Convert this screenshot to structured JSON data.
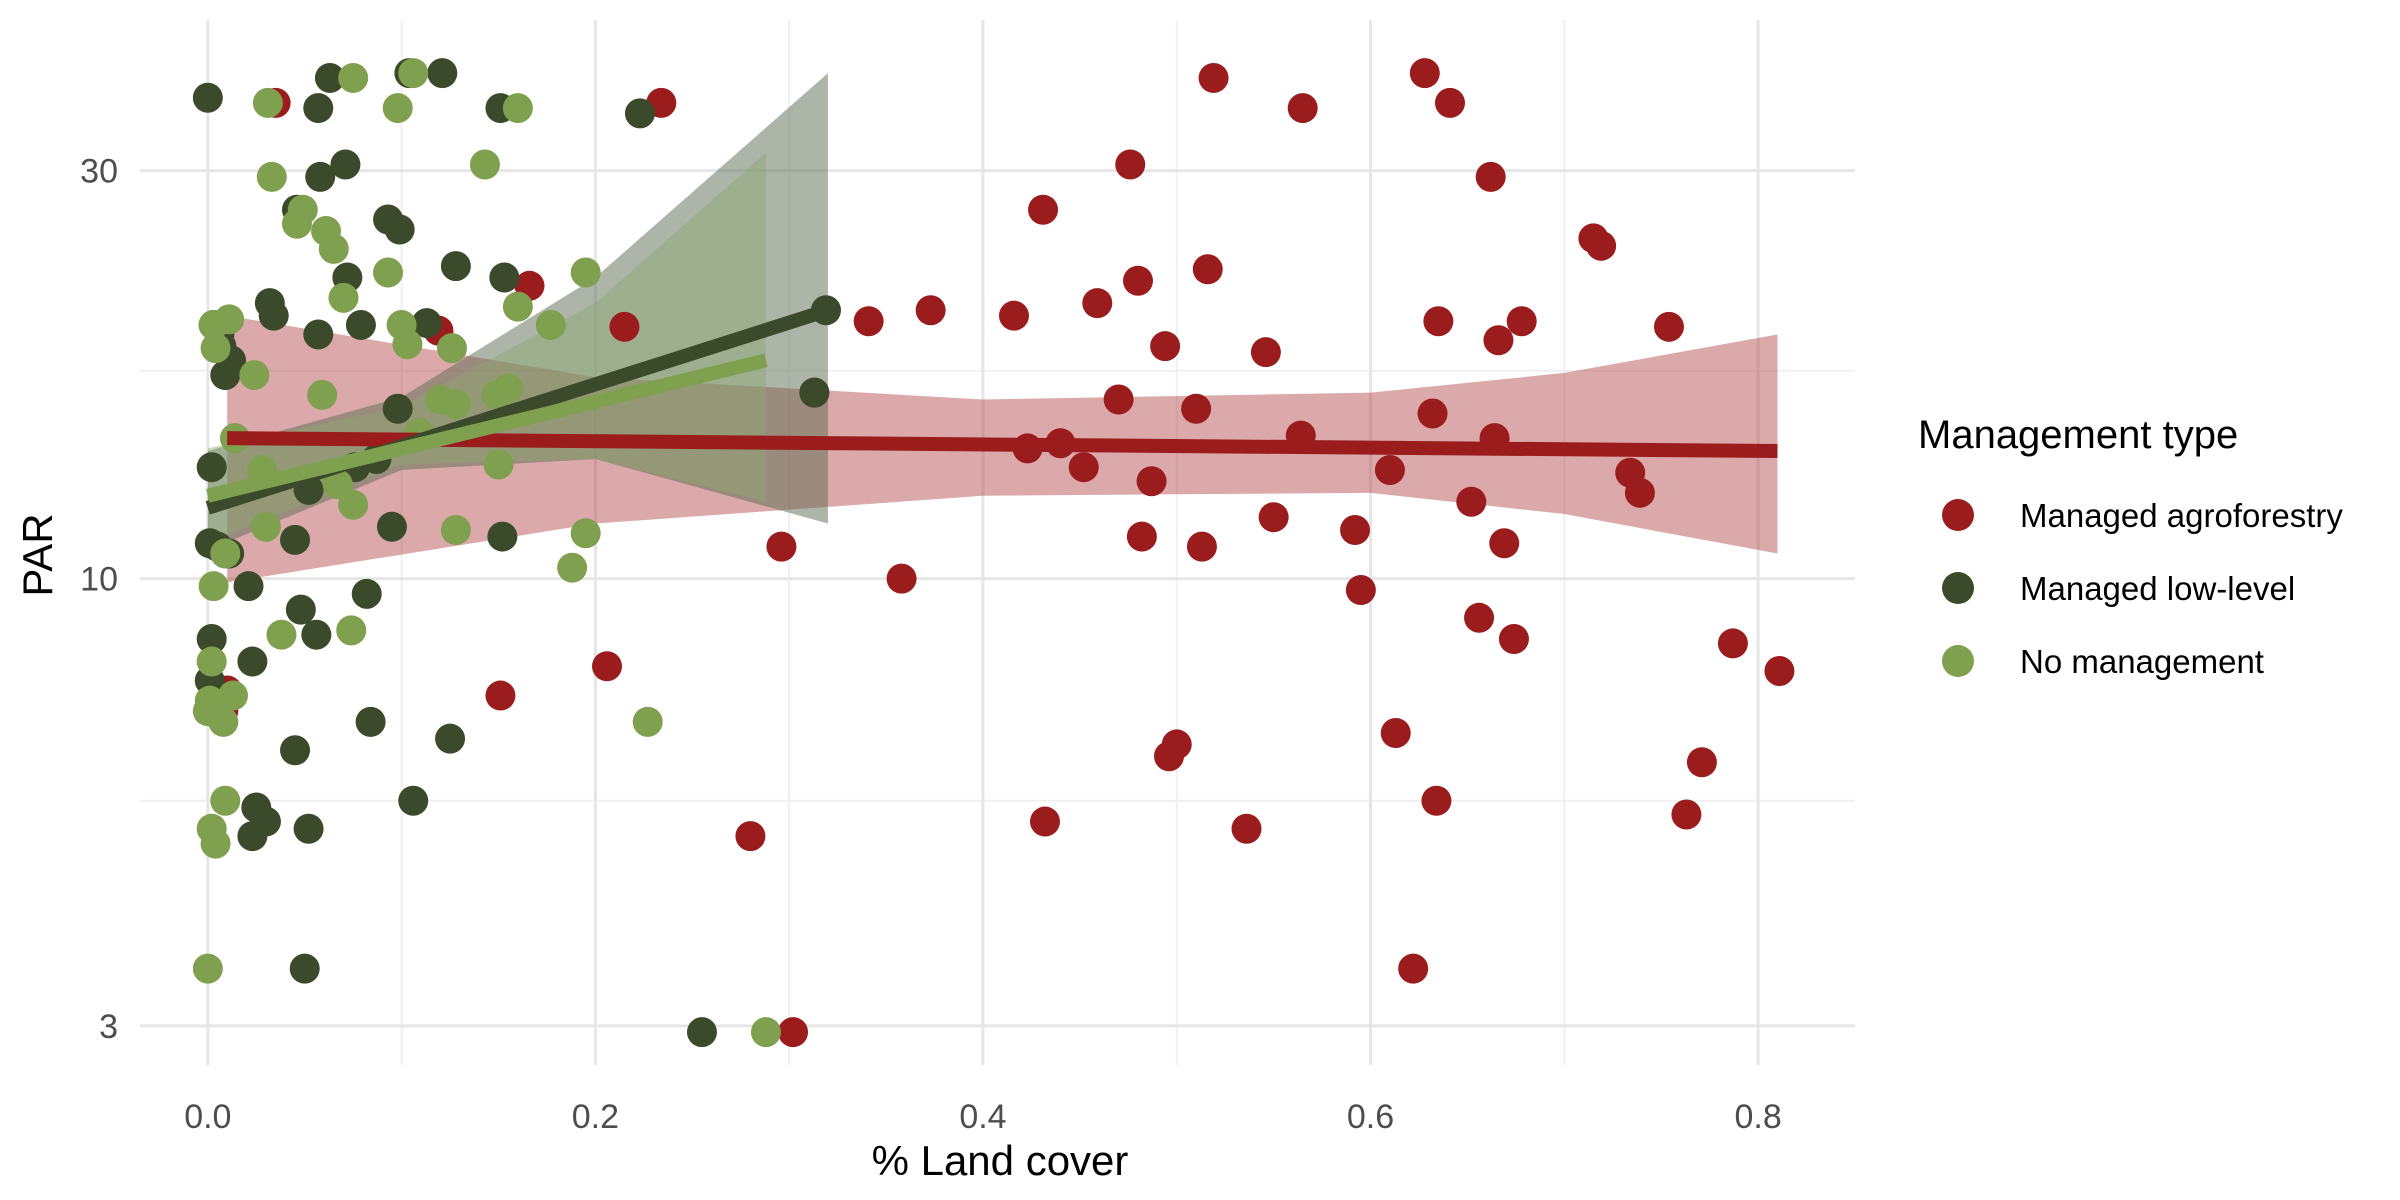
{
  "chart_data": {
    "type": "scatter",
    "xlabel": "% Land cover",
    "ylabel": "PAR",
    "y_scale": "log",
    "xlim": [
      -0.035,
      0.85
    ],
    "ylim": [
      2.7,
      45
    ],
    "x_ticks": [
      0.0,
      0.2,
      0.4,
      0.6,
      0.8
    ],
    "x_tick_labels": [
      "0.0",
      "0.2",
      "0.4",
      "0.6",
      "0.8"
    ],
    "y_ticks": [
      3,
      10,
      30
    ],
    "y_tick_labels": [
      "3",
      "10",
      "30"
    ],
    "grid": true,
    "legend": {
      "title": "Management type",
      "position": "right"
    },
    "series": [
      {
        "name": "Managed agroforestry",
        "color": "#9b1c1c",
        "x": [
          0.035,
          0.234,
          0.166,
          0.119,
          0.215,
          0.313,
          0.01,
          0.008,
          0.206,
          0.151,
          0.296,
          0.302,
          0.28,
          0.341,
          0.373,
          0.358,
          0.416,
          0.423,
          0.431,
          0.432,
          0.44,
          0.452,
          0.459,
          0.47,
          0.476,
          0.48,
          0.482,
          0.487,
          0.494,
          0.496,
          0.5,
          0.51,
          0.513,
          0.516,
          0.519,
          0.536,
          0.546,
          0.55,
          0.564,
          0.565,
          0.592,
          0.595,
          0.61,
          0.613,
          0.622,
          0.628,
          0.632,
          0.634,
          0.635,
          0.641,
          0.652,
          0.656,
          0.662,
          0.664,
          0.666,
          0.669,
          0.674,
          0.678,
          0.715,
          0.719,
          0.734,
          0.739,
          0.754,
          0.763,
          0.771,
          0.787,
          0.811
        ],
        "y": [
          36,
          36,
          22,
          19.5,
          19.7,
          16.5,
          7.4,
          7,
          7.9,
          7.3,
          10.9,
          2.95,
          5,
          20,
          20.6,
          10,
          20.3,
          14.2,
          27,
          5.2,
          14.4,
          13.5,
          21,
          16.2,
          30.5,
          22.3,
          11.2,
          13,
          18.7,
          6.2,
          6.4,
          15.8,
          10.9,
          23,
          38.5,
          5.1,
          18.4,
          11.8,
          14.7,
          35.5,
          11.4,
          9.7,
          13.4,
          6.6,
          3.5,
          39,
          15.6,
          5.5,
          20,
          36,
          12.3,
          9,
          29.5,
          14.6,
          19,
          11,
          8.5,
          20,
          25,
          24.5,
          13.3,
          12.6,
          19.7,
          5.3,
          6.1,
          8.4,
          7.8
        ]
      },
      {
        "name": "Managed low-level",
        "color": "#3a4a2a",
        "x": [
          0.0,
          0.063,
          0.104,
          0.121,
          0.151,
          0.223,
          0.057,
          0.071,
          0.046,
          0.093,
          0.099,
          0.128,
          0.153,
          0.072,
          0.032,
          0.003,
          0.034,
          0.079,
          0.113,
          0.007,
          0.009,
          0.057,
          0.087,
          0.098,
          0.076,
          0.002,
          0.001,
          0.005,
          0.095,
          0.152,
          0.048,
          0.021,
          0.011,
          0.052,
          0.082,
          0.002,
          0.056,
          0.023,
          0.001,
          0.001,
          0.084,
          0.125,
          0.045,
          0.106,
          0.025,
          0.03,
          0.023,
          0.052,
          0.05,
          0.255,
          0.319,
          0.313,
          0.058,
          0.045,
          0.012,
          0.006
        ],
        "y": [
          36.5,
          38.5,
          39,
          39,
          35.5,
          35,
          35.5,
          30.5,
          27,
          26.3,
          25.6,
          23.2,
          22.5,
          22.5,
          21,
          19.8,
          20.3,
          19.8,
          19.9,
          18.7,
          17.3,
          19.3,
          13.8,
          15.8,
          13.5,
          13.5,
          11,
          10.9,
          11.5,
          11.2,
          9.2,
          9.8,
          10.7,
          12.7,
          9.6,
          8.5,
          8.6,
          8.0,
          7.6,
          7.0,
          6.8,
          6.5,
          6.3,
          5.5,
          5.4,
          5.2,
          5.0,
          5.1,
          3.5,
          2.95,
          20.6,
          16.5,
          29.5,
          11.1,
          18.0,
          19.3
        ]
      },
      {
        "name": "No management",
        "color": "#7fa04e",
        "x": [
          0.075,
          0.106,
          0.031,
          0.098,
          0.16,
          0.143,
          0.033,
          0.049,
          0.046,
          0.061,
          0.065,
          0.07,
          0.093,
          0.195,
          0.003,
          0.011,
          0.004,
          0.024,
          0.1,
          0.103,
          0.126,
          0.16,
          0.177,
          0.149,
          0.155,
          0.128,
          0.12,
          0.109,
          0.059,
          0.028,
          0.067,
          0.15,
          0.075,
          0.014,
          0.03,
          0.128,
          0.195,
          0.188,
          0.003,
          0.009,
          0.038,
          0.074,
          0.002,
          0.001,
          0.013,
          0.0,
          0.008,
          0.009,
          0.002,
          0.004,
          0.227,
          0.288,
          0.0
        ],
        "y": [
          38.5,
          39,
          36,
          35.5,
          35.5,
          30.5,
          29.5,
          27,
          26,
          25.5,
          24.3,
          21.3,
          22.8,
          22.8,
          19.8,
          20.1,
          18.6,
          17.3,
          19.8,
          18.8,
          18.6,
          20.8,
          19.8,
          16.4,
          16.7,
          16.0,
          16.2,
          14.8,
          16.4,
          13.4,
          12.9,
          13.6,
          12.2,
          14.6,
          11.5,
          11.4,
          11.3,
          10.3,
          9.8,
          10.7,
          8.6,
          8.7,
          8.0,
          7.2,
          7.3,
          7.0,
          6.8,
          5.5,
          5.1,
          4.9,
          6.8,
          2.95,
          3.5
        ]
      }
    ],
    "trend_lines": [
      {
        "series": "Managed agroforestry",
        "x_start": 0.01,
        "x_end": 0.81,
        "y_start": 14.6,
        "y_end": 14.1,
        "band_lower": [
          [
            0.01,
            9.9
          ],
          [
            0.2,
            11.6
          ],
          [
            0.4,
            12.5
          ],
          [
            0.6,
            12.6
          ],
          [
            0.7,
            11.9
          ],
          [
            0.81,
            10.7
          ]
        ],
        "band_upper": [
          [
            0.01,
            20.3
          ],
          [
            0.2,
            17.2
          ],
          [
            0.4,
            16.2
          ],
          [
            0.6,
            16.5
          ],
          [
            0.7,
            17.4
          ],
          [
            0.81,
            19.3
          ]
        ]
      },
      {
        "series": "Managed low-level",
        "x_start": 0.0,
        "x_end": 0.32,
        "y_start": 12.1,
        "y_end": 20.6,
        "band_lower": [
          [
            0.0,
            10.8
          ],
          [
            0.1,
            13.4
          ],
          [
            0.2,
            13.8
          ],
          [
            0.32,
            11.6
          ]
        ],
        "band_upper": [
          [
            0.0,
            14.1
          ],
          [
            0.1,
            16.3
          ],
          [
            0.2,
            22.5
          ],
          [
            0.32,
            39.0
          ]
        ]
      },
      {
        "series": "No management",
        "x_start": 0.0,
        "x_end": 0.288,
        "y_start": 12.5,
        "y_end": 18.0,
        "band_lower": [
          [
            0.0,
            11.0
          ],
          [
            0.1,
            13.6
          ],
          [
            0.2,
            13.8
          ],
          [
            0.288,
            12.3
          ]
        ],
        "band_upper": [
          [
            0.0,
            14.2
          ],
          [
            0.1,
            15.9
          ],
          [
            0.2,
            21.0
          ],
          [
            0.288,
            31.5
          ]
        ]
      }
    ]
  }
}
